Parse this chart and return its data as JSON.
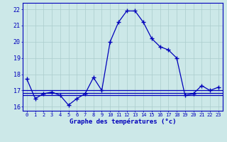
{
  "hours": [
    0,
    1,
    2,
    3,
    4,
    5,
    6,
    7,
    8,
    9,
    10,
    11,
    12,
    13,
    14,
    15,
    16,
    17,
    18,
    19,
    20,
    21,
    22,
    23
  ],
  "temps": [
    17.7,
    16.5,
    16.8,
    16.9,
    16.7,
    16.1,
    16.5,
    16.8,
    17.8,
    17.0,
    20.0,
    21.2,
    21.9,
    21.9,
    21.2,
    20.2,
    19.7,
    19.5,
    19.0,
    16.7,
    16.8,
    17.3,
    17.0,
    17.2
  ],
  "hlines": [
    16.7,
    16.85,
    17.0
  ],
  "line_color": "#0000bb",
  "bg_color": "#cce8e8",
  "grid_color": "#aacccc",
  "ylim": [
    15.75,
    22.4
  ],
  "xlim": [
    -0.5,
    23.5
  ],
  "yticks": [
    16,
    17,
    18,
    19,
    20,
    21,
    22
  ],
  "xlabel": "Graphe des températures (°c)"
}
